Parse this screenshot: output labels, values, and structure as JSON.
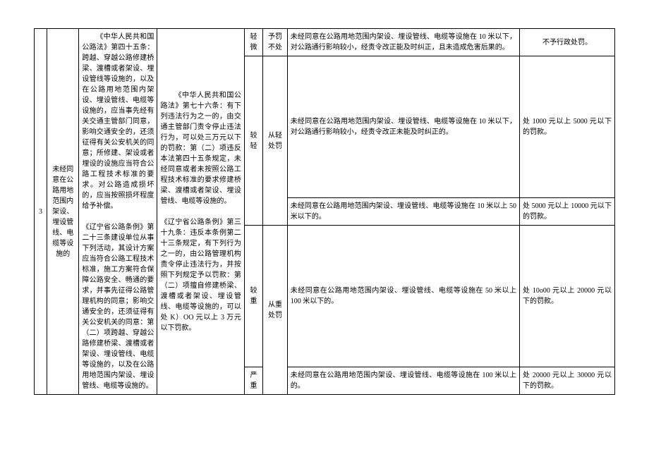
{
  "row": {
    "index": "3",
    "name": "未经同意在公路用地范围内架设、埋设管线、电缆等设施的",
    "basis": "《中华人民共和国公路法》第四十五条：跨越、穿越公路修建桥梁、渡槽或者架设、埋设管线等设施的，以及在公路用地范围内架设、埋设管线、电缆等设施的，应当事先经有关交通主管部门同意，影响交通安全的，还须征得有关公安机关的同意；所修建、架设或者埋设的设施应当符合公路工程技术标准的要求。对公路造成损坏的，应当按照损坏程度给予补偿。\n\n《辽宁省公路条例》第二十三条建设单位从事下列活动，其设计方案应当符合公路工程技术标准，施工方案符合保障公路安全、畅通的要求，并事先征得公路管理机构的同意；影响交通安全的，还须征得有关公安机关的同意：第（二）项跨越、穿越公路修建桥梁、渡槽或者架设、埋设管线、电缆等设施的，以及在公路用地范围内架设、埋设管线、电缆等设施的。",
    "law": "《中华人民共和国公路法》第七十六条：有下列违法行为之一的，由交通主管部门责令停止违法行为，可以处三万元以下的罚款：第（二）项违反本法第四十五条规定，未经同意或者未按照公路工程技术标准的要求修建桥梁、渡槽或者架设、埋设管线、电缆等设施的。\n\n《辽宁省公路条例》第三十九条：违反本条例第二十三条规定，有下列行为之一的，由公路管理机构责令停止违法行为，并按照下列规定予以罚款：第（二）项擅自修建桥梁、渡槽或者架设、埋设管线、电缆等设施的，可以处 K）OO 元以上 3 万元以下罚款。"
  },
  "severity": {
    "qingwei": "轻微",
    "jiaoqing": "较轻",
    "jiaozhong": "较重",
    "yanzhong": "严重"
  },
  "disposal": {
    "yufabuchu": "予罚不处",
    "congqing": "从轻处罚",
    "congzhong": "从重处罚"
  },
  "rows": {
    "r1": {
      "desc": "未经同意在公路用地范围内架设、埋设管线、电缆等设施在 10 米以下，对公路通行影响较小，经责令改正能及时纠正，且未造成危害后果的。",
      "pen": "不予行政处罚。"
    },
    "r2": {
      "desc": "未经同意在公路用地范围内架设、埋设管线、电缆等设施在 10 米以下，对公路通行影响较小，经责令改正未能及时纠正的。",
      "pen": "处 1000 元以上 5000 元以下的罚款。"
    },
    "r3": {
      "desc": "未经同意在公路用地范围内架设、埋设管线、电缆等设施在 10 米以上 50 米以下的。",
      "pen": "处 5000 元以上 10000 元以下的罚款。"
    },
    "r4": {
      "desc": "未经同意在公路用地范围内架设、埋设管线、电缆等设施在 50 米以上 100 米以下的。",
      "pen": "处 10o00 元以上 20000 元以下的罚款。"
    },
    "r5": {
      "desc": "未经同意在公路用地范围内架设、埋设管线、电缆等设施在 100 米以上的。",
      "pen": "处 20000 元以上 30000 元以下的罚款。"
    }
  }
}
